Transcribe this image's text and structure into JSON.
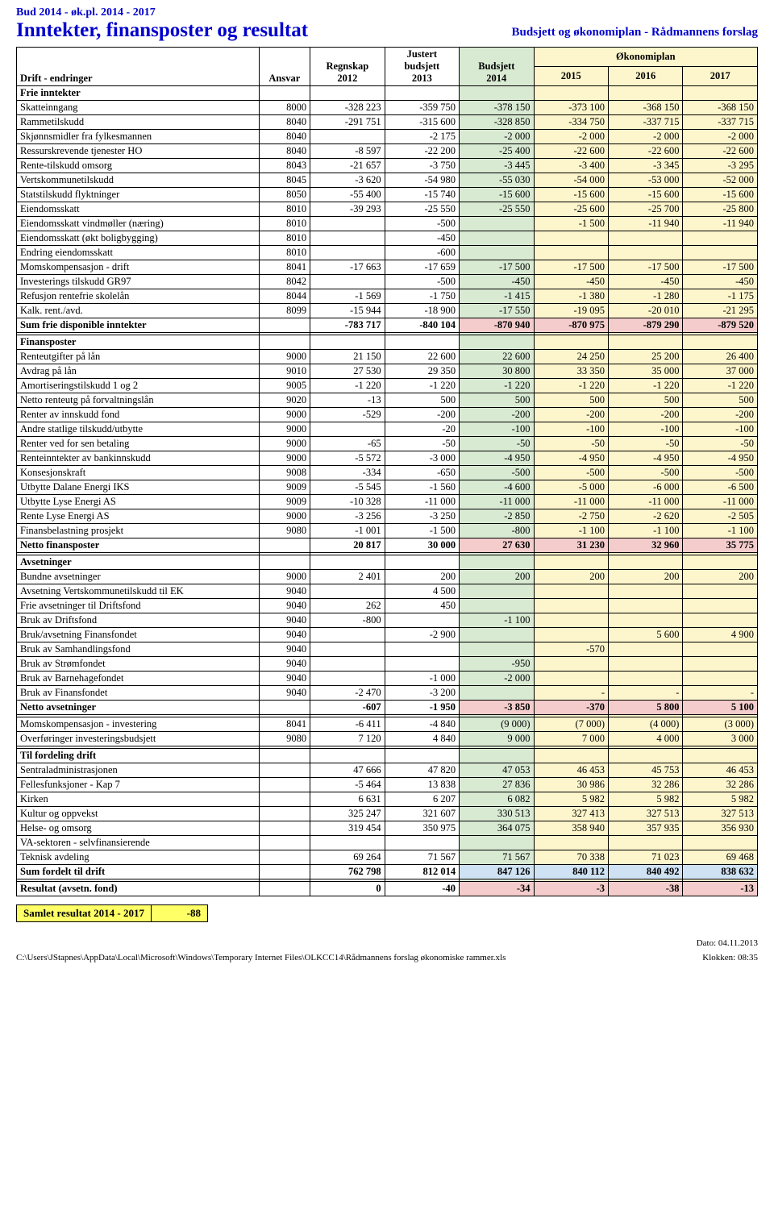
{
  "header": {
    "line1": "Bud 2014 - øk.pl. 2014 - 2017",
    "title": "Inntekter, finansposter og resultat",
    "subtitle": "Budsjett og økonomiplan - Rådmannens forslag"
  },
  "colors": {
    "green": "#d9ead3",
    "yellow": "#fdf6cc",
    "pink": "#f4cccc",
    "blue": "#cfe2f3",
    "yellowbox": "#ffff66",
    "header_blue": "#0000cc"
  },
  "tableHeader": {
    "drift": "Drift - endringer",
    "ansvar": "Ansvar",
    "regnskap": "Regnskap 2012",
    "justert": "Justert budsjett 2013",
    "budsjett": "Budsjett 2014",
    "okon": "Økonomiplan",
    "y15": "2015",
    "y16": "2016",
    "y17": "2017"
  },
  "sections": {
    "frie": "Frie inntekter",
    "sumFrie": "Sum frie disponible inntekter",
    "finans": "Finansposter",
    "nettoFinans": "Netto finansposter",
    "avset": "Avsetninger",
    "nettoAvset": "Netto avsetninger",
    "tilford": "Til fordeling drift",
    "sumFord": "Sum fordelt til drift",
    "resultat": "Resultat (avsetn. fond)"
  },
  "rows": {
    "frie": [
      {
        "label": "Skatteinngang",
        "ansvar": "8000",
        "v": [
          "-328 223",
          "-359 750",
          "-378 150",
          "-373 100",
          "-368 150",
          "-368 150"
        ]
      },
      {
        "label": "Rammetilskudd",
        "ansvar": "8040",
        "v": [
          "-291 751",
          "-315 600",
          "-328 850",
          "-334 750",
          "-337 715",
          "-337 715"
        ]
      },
      {
        "label": "Skjønnsmidler fra fylkesmannen",
        "ansvar": "8040",
        "v": [
          "",
          "-2 175",
          "-2 000",
          "-2 000",
          "-2 000",
          "-2 000"
        ]
      },
      {
        "label": "Ressurskrevende tjenester HO",
        "ansvar": "8040",
        "v": [
          "-8 597",
          "-22 200",
          "-25 400",
          "-22 600",
          "-22 600",
          "-22 600"
        ]
      },
      {
        "label": "Rente-tilskudd omsorg",
        "ansvar": "8043",
        "v": [
          "-21 657",
          "-3 750",
          "-3 445",
          "-3 400",
          "-3 345",
          "-3 295"
        ]
      },
      {
        "label": "Vertskommunetilskudd",
        "ansvar": "8045",
        "v": [
          "-3 620",
          "-54 980",
          "-55 030",
          "-54 000",
          "-53 000",
          "-52 000"
        ]
      },
      {
        "label": "Statstilskudd flyktninger",
        "ansvar": "8050",
        "v": [
          "-55 400",
          "-15 740",
          "-15 600",
          "-15 600",
          "-15 600",
          "-15 600"
        ]
      },
      {
        "label": "Eiendomsskatt",
        "ansvar": "8010",
        "v": [
          "-39 293",
          "-25 550",
          "-25 550",
          "-25 600",
          "-25 700",
          "-25 800"
        ]
      },
      {
        "label": "Eiendomsskatt vindmøller (næring)",
        "ansvar": "8010",
        "v": [
          "",
          "-500",
          "",
          "-1 500",
          "-11 940",
          "-11 940"
        ]
      },
      {
        "label": "Eiendomsskatt (økt boligbygging)",
        "ansvar": "8010",
        "v": [
          "",
          "-450",
          "",
          "",
          "",
          ""
        ]
      },
      {
        "label": "Endring eiendomsskatt",
        "ansvar": "8010",
        "v": [
          "",
          "-600",
          "",
          "",
          "",
          ""
        ]
      },
      {
        "label": "Momskompensasjon - drift",
        "ansvar": "8041",
        "v": [
          "-17 663",
          "-17 659",
          "-17 500",
          "-17 500",
          "-17 500",
          "-17 500"
        ]
      },
      {
        "label": "Investerings tilskudd GR97",
        "ansvar": "8042",
        "v": [
          "",
          "-500",
          "-450",
          "-450",
          "-450",
          "-450"
        ]
      },
      {
        "label": "Refusjon rentefrie skolelån",
        "ansvar": "8044",
        "v": [
          "-1 569",
          "-1 750",
          "-1 415",
          "-1 380",
          "-1 280",
          "-1 175"
        ]
      },
      {
        "label": "Kalk. rent./avd.",
        "ansvar": "8099",
        "v": [
          "-15 944",
          "-18 900",
          "-17 550",
          "-19 095",
          "-20 010",
          "-21 295"
        ]
      }
    ],
    "sumFrie": {
      "v": [
        "-783 717",
        "-840 104",
        "-870 940",
        "-870 975",
        "-879 290",
        "-879 520"
      ]
    },
    "finans": [
      {
        "label": "Renteutgifter på lån",
        "ansvar": "9000",
        "v": [
          "21 150",
          "22 600",
          "22 600",
          "24 250",
          "25 200",
          "26 400"
        ]
      },
      {
        "label": "Avdrag på lån",
        "ansvar": "9010",
        "v": [
          "27 530",
          "29 350",
          "30 800",
          "33 350",
          "35 000",
          "37 000"
        ]
      },
      {
        "label": "Amortiseringstilskudd 1 og 2",
        "ansvar": "9005",
        "v": [
          "-1 220",
          "-1 220",
          "-1 220",
          "-1 220",
          "-1 220",
          "-1 220"
        ]
      },
      {
        "label": "Netto renteutg på forvaltningslån",
        "ansvar": "9020",
        "v": [
          "-13",
          "500",
          "500",
          "500",
          "500",
          "500"
        ]
      },
      {
        "label": "Renter av innskudd fond",
        "ansvar": "9000",
        "v": [
          "-529",
          "-200",
          "-200",
          "-200",
          "-200",
          "-200"
        ]
      },
      {
        "label": "Andre statlige tilskudd/utbytte",
        "ansvar": "9000",
        "v": [
          "",
          "-20",
          "-100",
          "-100",
          "-100",
          "-100"
        ]
      },
      {
        "label": "Renter ved for sen betaling",
        "ansvar": "9000",
        "v": [
          "-65",
          "-50",
          "-50",
          "-50",
          "-50",
          "-50"
        ]
      },
      {
        "label": "Renteinntekter av bankinnskudd",
        "ansvar": "9000",
        "v": [
          "-5 572",
          "-3 000",
          "-4 950",
          "-4 950",
          "-4 950",
          "-4 950"
        ]
      },
      {
        "label": "Konsesjonskraft",
        "ansvar": "9008",
        "v": [
          "-334",
          "-650",
          "-500",
          "-500",
          "-500",
          "-500"
        ]
      },
      {
        "label": "Utbytte Dalane Energi IKS",
        "ansvar": "9009",
        "v": [
          "-5 545",
          "-1 560",
          "-4 600",
          "-5 000",
          "-6 000",
          "-6 500"
        ]
      },
      {
        "label": "Utbytte Lyse Energi AS",
        "ansvar": "9009",
        "v": [
          "-10 328",
          "-11 000",
          "-11 000",
          "-11 000",
          "-11 000",
          "-11 000"
        ]
      },
      {
        "label": "Rente Lyse Energi AS",
        "ansvar": "9000",
        "v": [
          "-3 256",
          "-3 250",
          "-2 850",
          "-2 750",
          "-2 620",
          "-2 505"
        ]
      },
      {
        "label": "Finansbelastning prosjekt",
        "ansvar": "9080",
        "v": [
          "-1 001",
          "-1 500",
          "-800",
          "-1 100",
          "-1 100",
          "-1 100"
        ]
      }
    ],
    "nettoFinans": {
      "v": [
        "20 817",
        "30 000",
        "27 630",
        "31 230",
        "32 960",
        "35 775"
      ]
    },
    "avset": [
      {
        "label": "Bundne avsetninger",
        "ansvar": "9000",
        "v": [
          "2 401",
          "200",
          "200",
          "200",
          "200",
          "200"
        ]
      },
      {
        "label": "Avsetning Vertskommunetilskudd til EK",
        "ansvar": "9040",
        "v": [
          "",
          "4 500",
          "",
          "",
          "",
          ""
        ]
      },
      {
        "label": "Frie avsetninger til Driftsfond",
        "ansvar": "9040",
        "v": [
          "262",
          "450",
          "",
          "",
          "",
          ""
        ]
      },
      {
        "label": "Bruk av Driftsfond",
        "ansvar": "9040",
        "v": [
          "-800",
          "",
          "-1 100",
          "",
          "",
          ""
        ]
      },
      {
        "label": "Bruk/avsetning Finansfondet",
        "ansvar": "9040",
        "v": [
          "",
          "-2 900",
          "",
          "",
          "5 600",
          "4 900"
        ]
      },
      {
        "label": "Bruk av Samhandlingsfond",
        "ansvar": "9040",
        "v": [
          "",
          "",
          "",
          "-570",
          "",
          ""
        ]
      },
      {
        "label": "Bruk av Strømfondet",
        "ansvar": "9040",
        "v": [
          "",
          "",
          "-950",
          "",
          "",
          ""
        ]
      },
      {
        "label": "Bruk av Barnehagefondet",
        "ansvar": "9040",
        "v": [
          "",
          "-1 000",
          "-2 000",
          "",
          "",
          ""
        ]
      },
      {
        "label": "Bruk av Finansfondet",
        "ansvar": "9040",
        "v": [
          "-2 470",
          "-3 200",
          "",
          "-",
          "-",
          "-"
        ]
      }
    ],
    "nettoAvset": {
      "v": [
        "-607",
        "-1 950",
        "-3 850",
        "-370",
        "5 800",
        "5 100"
      ]
    },
    "moms": [
      {
        "label": "Momskompensasjon - investering",
        "ansvar": "8041",
        "v": [
          "-6 411",
          "-4 840",
          "(9 000)",
          "(7 000)",
          "(4 000)",
          "(3 000)"
        ]
      },
      {
        "label": "Overføringer investeringsbudsjett",
        "ansvar": "9080",
        "v": [
          "7 120",
          "4 840",
          "9 000",
          "7 000",
          "4 000",
          "3 000"
        ]
      }
    ],
    "tilford": [
      {
        "label": "Sentraladministrasjonen",
        "ansvar": "",
        "v": [
          "47 666",
          "47 820",
          "47 053",
          "46 453",
          "45 753",
          "46 453"
        ]
      },
      {
        "label": "Fellesfunksjoner - Kap 7",
        "ansvar": "",
        "v": [
          "-5 464",
          "13 838",
          "27 836",
          "30 986",
          "32 286",
          "32 286"
        ]
      },
      {
        "label": "Kirken",
        "ansvar": "",
        "v": [
          "6 631",
          "6 207",
          "6 082",
          "5 982",
          "5 982",
          "5 982"
        ]
      },
      {
        "label": "Kultur og oppvekst",
        "ansvar": "",
        "v": [
          "325 247",
          "321 607",
          "330 513",
          "327 413",
          "327 513",
          "327 513"
        ]
      },
      {
        "label": "Helse- og omsorg",
        "ansvar": "",
        "v": [
          "319 454",
          "350 975",
          "364 075",
          "358 940",
          "357 935",
          "356 930"
        ]
      },
      {
        "label": "VA-sektoren - selvfinansierende",
        "ansvar": "",
        "v": [
          "",
          "",
          "",
          "",
          "",
          ""
        ]
      },
      {
        "label": "Teknisk avdeling",
        "ansvar": "",
        "v": [
          "69 264",
          "71 567",
          "71 567",
          "70 338",
          "71 023",
          "69 468"
        ]
      }
    ],
    "sumFord": {
      "v": [
        "762 798",
        "812 014",
        "847 126",
        "840 112",
        "840 492",
        "838 632"
      ]
    },
    "resultat": {
      "v": [
        "0",
        "-40",
        "-34",
        "-3",
        "-38",
        "-13"
      ]
    }
  },
  "samlet": {
    "label": "Samlet resultat 2014 - 2017",
    "value": "-88"
  },
  "footer": {
    "path": "C:\\Users\\JStapnes\\AppData\\Local\\Microsoft\\Windows\\Temporary Internet Files\\OLKCC14\\Rådmannens forslag økonomiske rammer.xls",
    "dato": "Dato: 04.11.2013",
    "klokken": "Klokken: 08:35"
  }
}
